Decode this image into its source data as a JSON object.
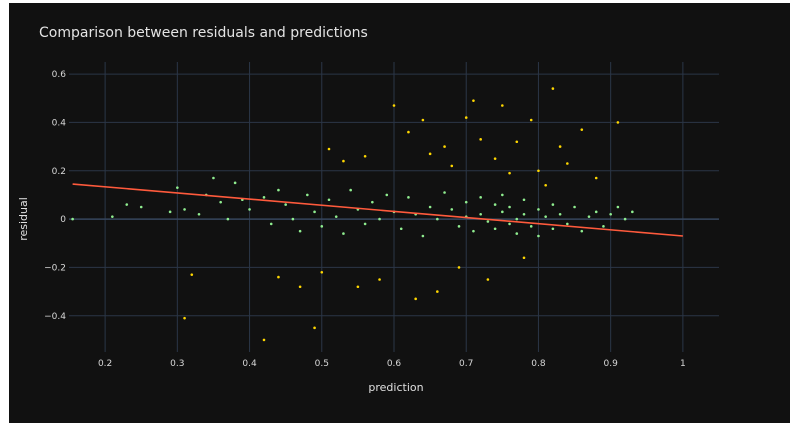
{
  "colors": {
    "background": "#111111",
    "grid": "#2b3647",
    "zeroline": "#36465e",
    "points_main": "#90ee90",
    "points_outlier": "#ffd700",
    "trend_line": "#ff5a3c"
  },
  "chart_data": {
    "type": "scatter",
    "title": "Comparison between residuals and predictions",
    "xlabel": "prediction",
    "ylabel": "residual",
    "xlim": [
      0.15,
      1.05
    ],
    "ylim": [
      -0.55,
      0.65
    ],
    "x_ticks": [
      "0.2",
      "0.3",
      "0.4",
      "0.5",
      "0.6",
      "0.7",
      "0.8",
      "0.9",
      "1"
    ],
    "y_ticks": [
      "−0.4",
      "−0.2",
      "0",
      "0.2",
      "0.4",
      "0.6"
    ],
    "x_tick_values": [
      0.2,
      0.3,
      0.4,
      0.5,
      0.6,
      0.7,
      0.8,
      0.9,
      1.0
    ],
    "y_tick_values": [
      -0.4,
      -0.2,
      0,
      0.2,
      0.4,
      0.6
    ],
    "grid": true,
    "trend_line": {
      "x": [
        0.155,
        1.0
      ],
      "y": [
        0.145,
        -0.07
      ]
    },
    "series": [
      {
        "points": [
          [
            0.155,
            0.0
          ],
          [
            0.21,
            0.01
          ],
          [
            0.23,
            0.06
          ],
          [
            0.25,
            0.05
          ],
          [
            0.29,
            0.03
          ],
          [
            0.3,
            0.13
          ],
          [
            0.31,
            0.04
          ],
          [
            0.33,
            0.02
          ],
          [
            0.34,
            0.1
          ],
          [
            0.35,
            0.17
          ],
          [
            0.36,
            0.07
          ],
          [
            0.37,
            0.0
          ],
          [
            0.38,
            0.15
          ],
          [
            0.39,
            0.08
          ],
          [
            0.4,
            0.04
          ],
          [
            0.42,
            0.09
          ],
          [
            0.43,
            -0.02
          ],
          [
            0.44,
            0.12
          ],
          [
            0.45,
            0.06
          ],
          [
            0.46,
            0.0
          ],
          [
            0.47,
            -0.05
          ],
          [
            0.48,
            0.1
          ],
          [
            0.49,
            0.03
          ],
          [
            0.5,
            -0.03
          ],
          [
            0.51,
            0.08
          ],
          [
            0.52,
            0.01
          ],
          [
            0.53,
            -0.06
          ],
          [
            0.54,
            0.12
          ],
          [
            0.55,
            0.04
          ],
          [
            0.56,
            -0.02
          ],
          [
            0.57,
            0.07
          ],
          [
            0.58,
            0.0
          ],
          [
            0.59,
            0.1
          ],
          [
            0.6,
            0.03
          ],
          [
            0.61,
            -0.04
          ],
          [
            0.62,
            0.09
          ],
          [
            0.63,
            0.02
          ],
          [
            0.64,
            -0.07
          ],
          [
            0.65,
            0.05
          ],
          [
            0.66,
            0.0
          ],
          [
            0.67,
            0.11
          ],
          [
            0.68,
            0.04
          ],
          [
            0.69,
            -0.03
          ],
          [
            0.7,
            0.07
          ],
          [
            0.7,
            0.01
          ],
          [
            0.71,
            -0.05
          ],
          [
            0.72,
            0.09
          ],
          [
            0.72,
            0.02
          ],
          [
            0.73,
            -0.01
          ],
          [
            0.74,
            0.06
          ],
          [
            0.74,
            -0.04
          ],
          [
            0.75,
            0.03
          ],
          [
            0.75,
            0.1
          ],
          [
            0.76,
            -0.02
          ],
          [
            0.76,
            0.05
          ],
          [
            0.77,
            0.0
          ],
          [
            0.77,
            -0.06
          ],
          [
            0.78,
            0.08
          ],
          [
            0.78,
            0.02
          ],
          [
            0.79,
            -0.03
          ],
          [
            0.8,
            0.04
          ],
          [
            0.8,
            -0.07
          ],
          [
            0.81,
            0.01
          ],
          [
            0.82,
            0.06
          ],
          [
            0.82,
            -0.04
          ],
          [
            0.83,
            0.02
          ],
          [
            0.84,
            -0.02
          ],
          [
            0.85,
            0.05
          ],
          [
            0.86,
            -0.05
          ],
          [
            0.87,
            0.01
          ],
          [
            0.88,
            0.03
          ],
          [
            0.89,
            -0.03
          ],
          [
            0.9,
            0.02
          ],
          [
            0.91,
            0.05
          ],
          [
            0.92,
            0.0
          ],
          [
            0.93,
            0.03
          ]
        ]
      },
      {
        "points": [
          [
            0.31,
            -0.41
          ],
          [
            0.32,
            -0.23
          ],
          [
            0.42,
            -0.5
          ],
          [
            0.44,
            -0.24
          ],
          [
            0.47,
            -0.28
          ],
          [
            0.49,
            -0.45
          ],
          [
            0.5,
            -0.22
          ],
          [
            0.51,
            0.29
          ],
          [
            0.53,
            0.24
          ],
          [
            0.55,
            -0.28
          ],
          [
            0.56,
            0.26
          ],
          [
            0.58,
            -0.25
          ],
          [
            0.6,
            0.47
          ],
          [
            0.62,
            0.36
          ],
          [
            0.63,
            -0.33
          ],
          [
            0.64,
            0.41
          ],
          [
            0.65,
            0.27
          ],
          [
            0.66,
            -0.3
          ],
          [
            0.67,
            0.3
          ],
          [
            0.68,
            0.22
          ],
          [
            0.69,
            -0.2
          ],
          [
            0.7,
            0.42
          ],
          [
            0.71,
            0.49
          ],
          [
            0.72,
            0.33
          ],
          [
            0.73,
            -0.25
          ],
          [
            0.74,
            0.25
          ],
          [
            0.75,
            0.47
          ],
          [
            0.76,
            0.19
          ],
          [
            0.77,
            0.32
          ],
          [
            0.78,
            -0.16
          ],
          [
            0.79,
            0.41
          ],
          [
            0.8,
            0.2
          ],
          [
            0.81,
            0.14
          ],
          [
            0.82,
            0.54
          ],
          [
            0.83,
            0.3
          ],
          [
            0.84,
            0.23
          ],
          [
            0.86,
            0.37
          ],
          [
            0.88,
            0.17
          ],
          [
            0.91,
            0.4
          ]
        ]
      }
    ]
  }
}
